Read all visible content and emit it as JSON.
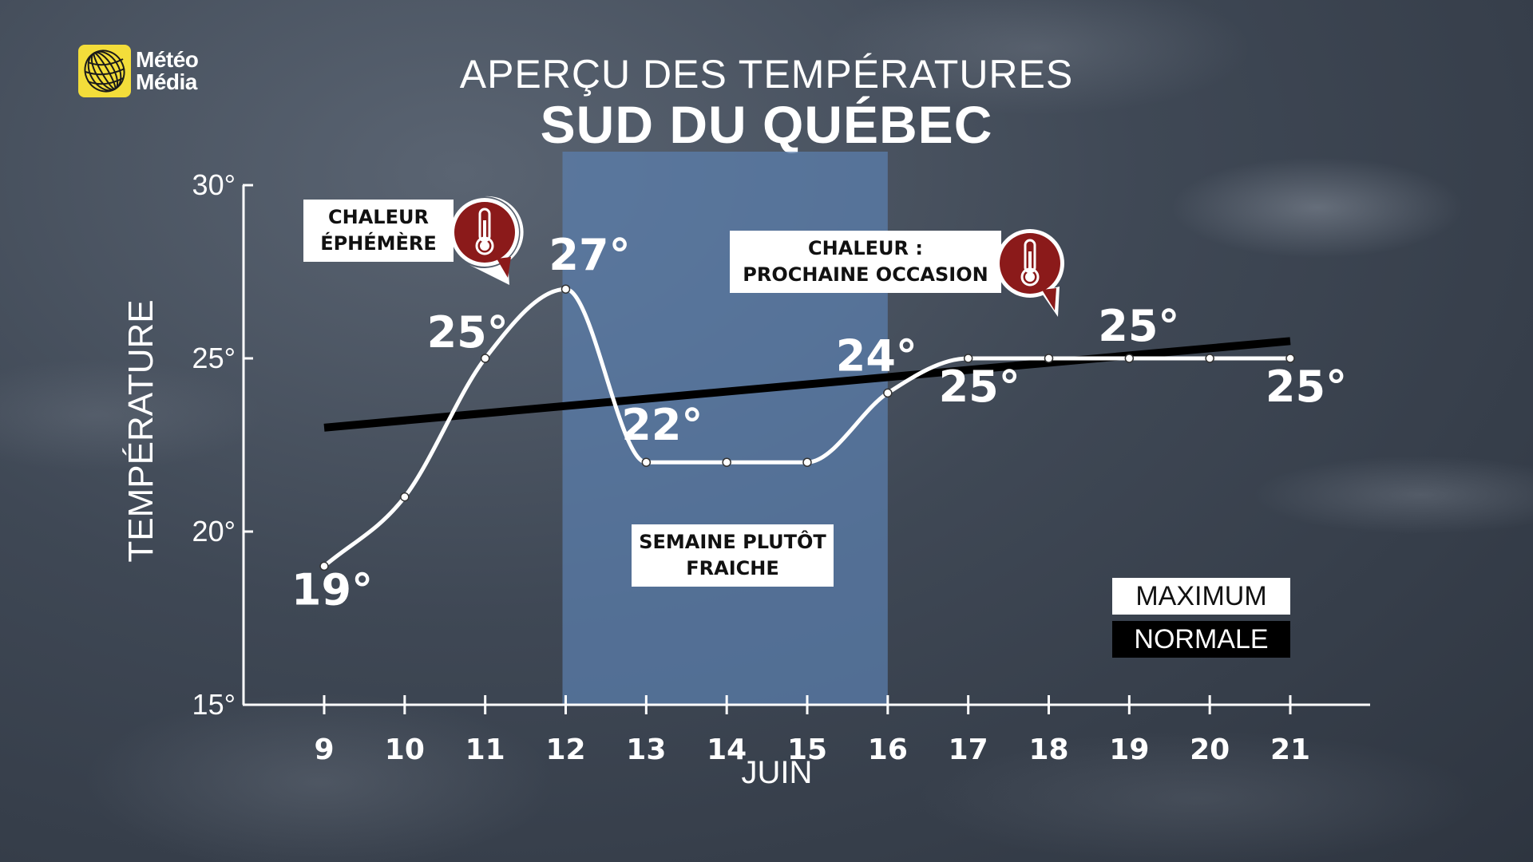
{
  "brand": {
    "logo_line1": "Météo",
    "logo_line2": "Média"
  },
  "title": "APERÇU DES TEMPÉRATURES",
  "subtitle": "SUD DU QUÉBEC",
  "callouts": {
    "chaleur_ephemere": {
      "line1": "CHALEUR",
      "line2": "ÉPHÉMÈRE"
    },
    "chaleur_prochaine": {
      "line1": "CHALEUR :",
      "line2": "PROCHAINE OCCASION"
    },
    "semaine_fraiche": {
      "line1": "SEMAINE PLUTÔT",
      "line2": "FRAICHE"
    }
  },
  "legend": {
    "maximum": "MAXIMUM",
    "normale": "NORMALE"
  },
  "icons": [
    "meteomedia-logo-icon",
    "thermometer-icon"
  ],
  "colors": {
    "maximum": "#ffffff",
    "normale": "#000000",
    "highlight": "#5b7fae",
    "badge": "#8b1a1a"
  },
  "chart_data": {
    "type": "line",
    "xlabel": "JUIN",
    "ylabel": "TEMPÉRATURE",
    "x": [
      9,
      10,
      11,
      12,
      13,
      14,
      15,
      16,
      17,
      18,
      19,
      20,
      21
    ],
    "xlim": [
      8,
      22
    ],
    "ylim": [
      15,
      30
    ],
    "y_ticks": [
      "15°",
      "20°",
      "25°",
      "30°"
    ],
    "x_ticks": [
      "9",
      "10",
      "11",
      "12",
      "13",
      "14",
      "15",
      "16",
      "17",
      "18",
      "19",
      "20",
      "21"
    ],
    "highlight_range": [
      12,
      16
    ],
    "series": [
      {
        "name": "MAXIMUM",
        "values": [
          19,
          21,
          25,
          27,
          22,
          22,
          22,
          24,
          25,
          25,
          25,
          25,
          25
        ],
        "labeled": [
          {
            "x": 9,
            "text": "19°"
          },
          {
            "x": 11,
            "text": "25°"
          },
          {
            "x": 12,
            "text": "27°"
          },
          {
            "x": 13,
            "text": "22°"
          },
          {
            "x": 16,
            "text": "24°"
          },
          {
            "x": 17,
            "text": "25°"
          },
          {
            "x": 19,
            "text": "25°"
          },
          {
            "x": 21,
            "text": "25°"
          }
        ]
      },
      {
        "name": "NORMALE",
        "x": [
          9,
          21
        ],
        "values": [
          23.0,
          25.5
        ]
      }
    ]
  }
}
